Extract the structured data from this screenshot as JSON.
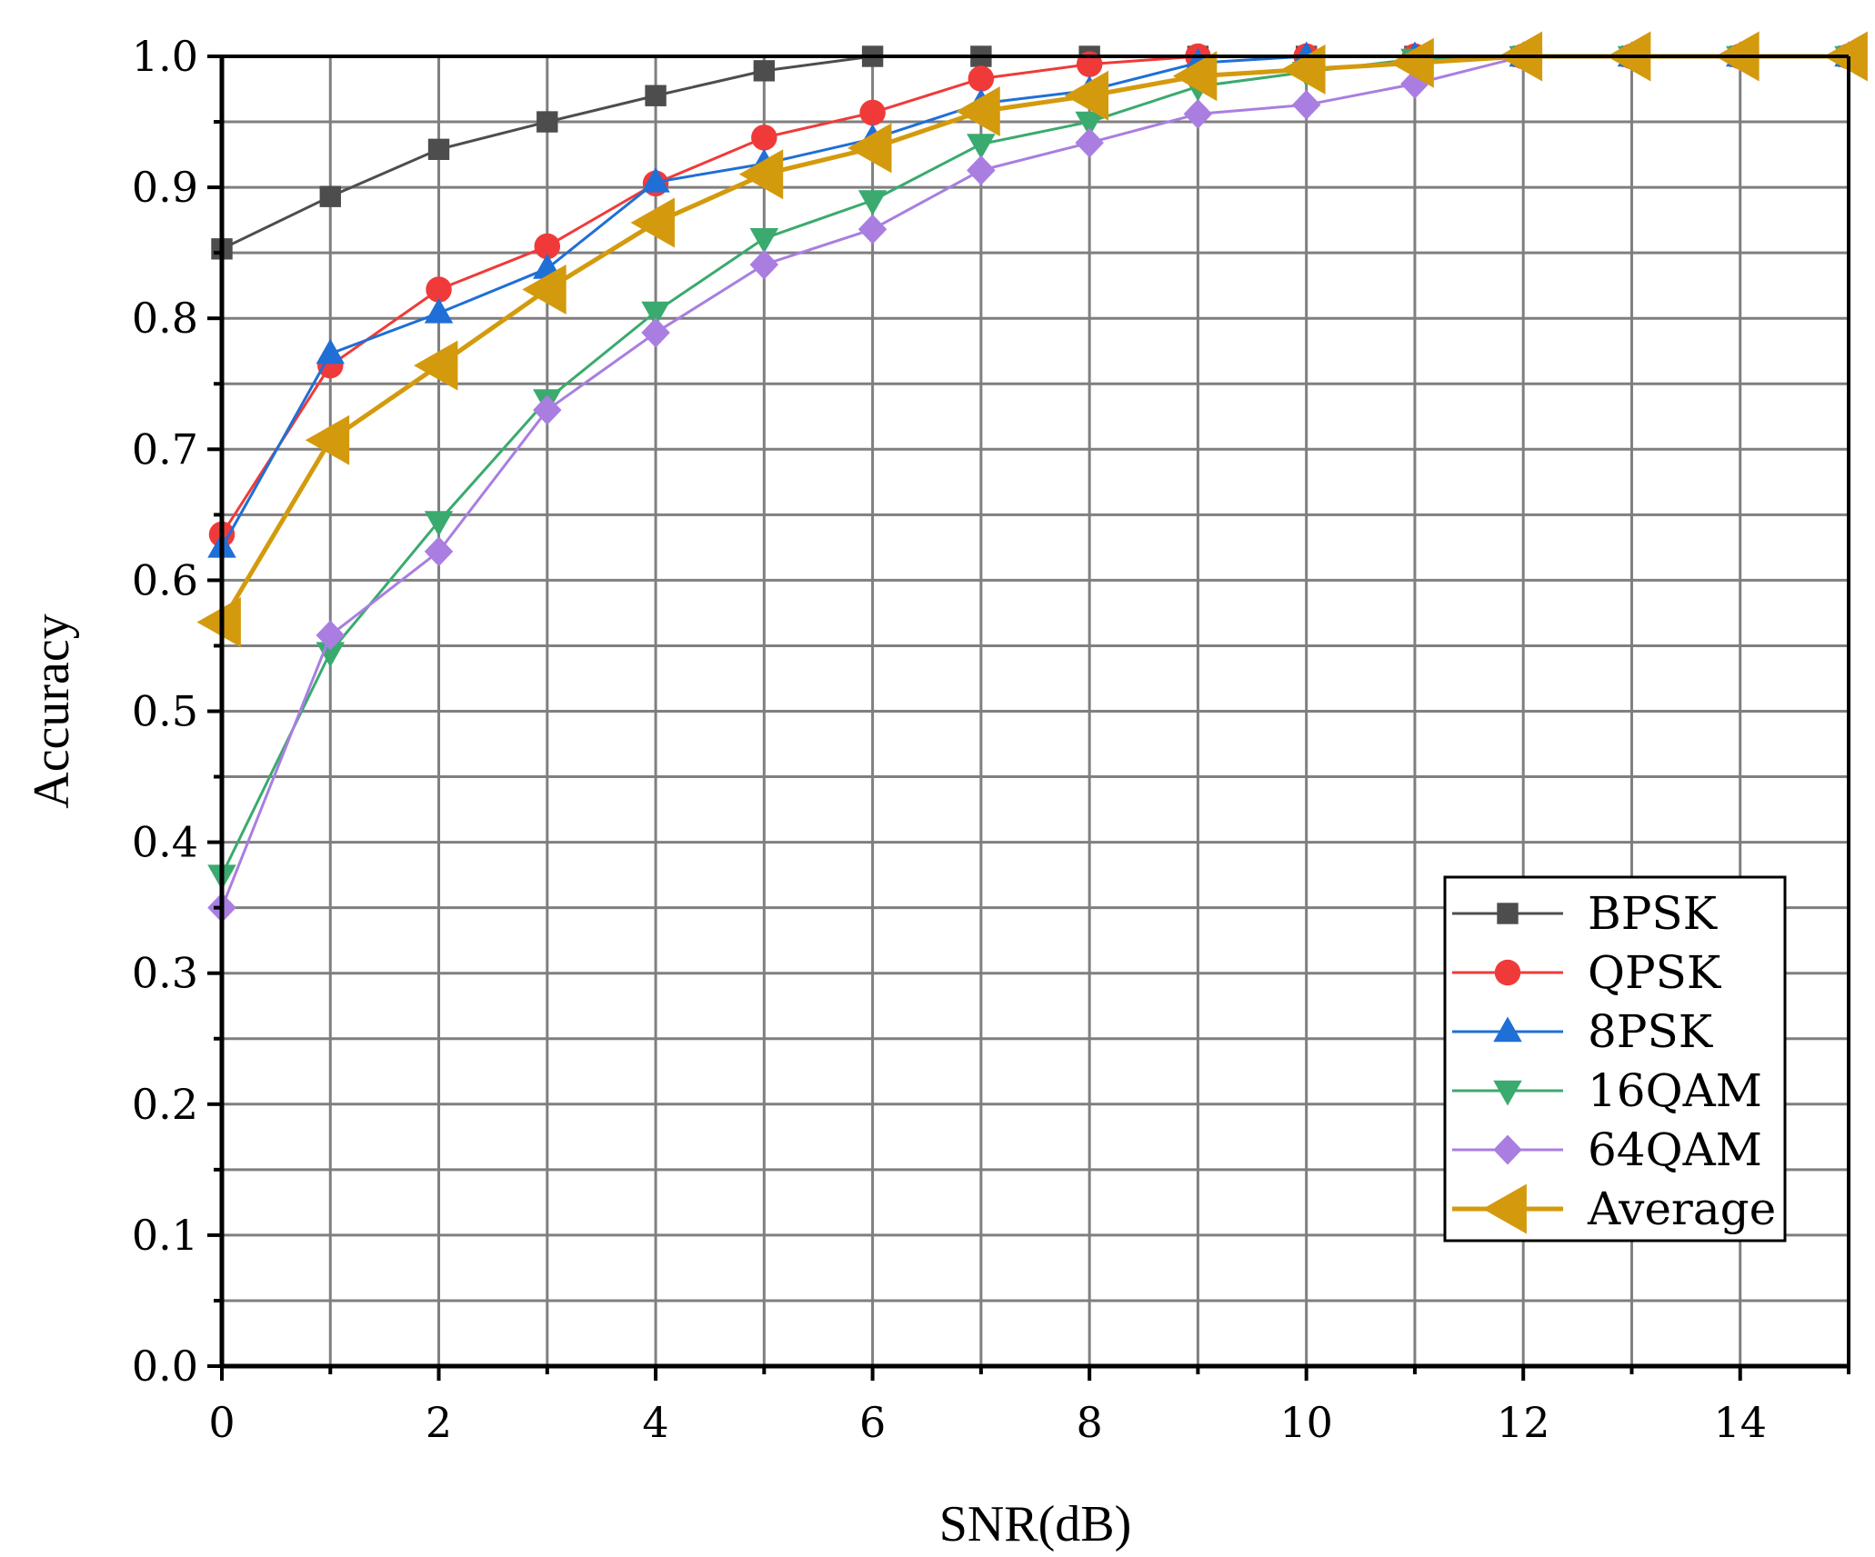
{
  "chart_data": {
    "type": "line",
    "title": "",
    "xlabel": "SNR(dB)",
    "ylabel": "Accuracy",
    "xlim": [
      0,
      15
    ],
    "ylim": [
      0,
      1
    ],
    "grid": true,
    "legend_position": "bottom-right",
    "x_ticks": [
      {
        "value": 0,
        "label": "0"
      },
      {
        "value": 2,
        "label": "2"
      },
      {
        "value": 4,
        "label": "4"
      },
      {
        "value": 6,
        "label": "6"
      },
      {
        "value": 8,
        "label": "8"
      },
      {
        "value": 10,
        "label": "10"
      },
      {
        "value": 12,
        "label": "12"
      },
      {
        "value": 14,
        "label": "14"
      }
    ],
    "y_ticks": [
      {
        "value": 0.0,
        "label": "0.0"
      },
      {
        "value": 0.1,
        "label": "0.1"
      },
      {
        "value": 0.2,
        "label": "0.2"
      },
      {
        "value": 0.3,
        "label": "0.3"
      },
      {
        "value": 0.4,
        "label": "0.4"
      },
      {
        "value": 0.5,
        "label": "0.5"
      },
      {
        "value": 0.6,
        "label": "0.6"
      },
      {
        "value": 0.7,
        "label": "0.7"
      },
      {
        "value": 0.8,
        "label": "0.8"
      },
      {
        "value": 0.9,
        "label": "0.9"
      },
      {
        "value": 1.0,
        "label": "1.0"
      }
    ],
    "x": [
      0,
      1,
      2,
      3,
      4,
      5,
      6,
      7,
      8,
      9,
      10,
      11,
      12,
      13,
      14,
      15
    ],
    "series": [
      {
        "name": "BPSK",
        "color": "#4d4d4d",
        "marker": "square",
        "values": [
          0.853,
          0.893,
          0.929,
          0.95,
          0.97,
          0.989,
          1.0,
          1.0,
          1.0,
          1.0,
          1.0,
          1.0,
          1.0,
          1.0,
          1.0,
          1.0
        ]
      },
      {
        "name": "QPSK",
        "color": "#f03a3a",
        "marker": "circle",
        "values": [
          0.635,
          0.764,
          0.822,
          0.855,
          0.903,
          0.938,
          0.957,
          0.983,
          0.994,
          1.0,
          1.0,
          1.0,
          1.0,
          1.0,
          1.0,
          1.0
        ]
      },
      {
        "name": "8PSK",
        "color": "#1f6fd6",
        "marker": "triangle-up",
        "values": [
          0.625,
          0.773,
          0.804,
          0.838,
          0.904,
          0.918,
          0.937,
          0.964,
          0.974,
          0.995,
          1.0,
          1.0,
          1.0,
          1.0,
          1.0,
          1.0
        ]
      },
      {
        "name": "16QAM",
        "color": "#3aaa6e",
        "marker": "triangle-down",
        "values": [
          0.375,
          0.545,
          0.645,
          0.738,
          0.805,
          0.861,
          0.89,
          0.933,
          0.95,
          0.977,
          0.988,
          0.998,
          1.0,
          1.0,
          1.0,
          1.0
        ]
      },
      {
        "name": "64QAM",
        "color": "#a97ee0",
        "marker": "diamond",
        "values": [
          0.35,
          0.558,
          0.622,
          0.73,
          0.789,
          0.841,
          0.868,
          0.913,
          0.934,
          0.956,
          0.963,
          0.979,
          1.0,
          1.0,
          1.0,
          1.0
        ]
      },
      {
        "name": "Average",
        "color": "#d49a0e",
        "marker": "triangle-left",
        "values": [
          0.568,
          0.707,
          0.764,
          0.822,
          0.873,
          0.91,
          0.93,
          0.958,
          0.97,
          0.985,
          0.99,
          0.995,
          1.0,
          1.0,
          1.0,
          1.0
        ]
      }
    ]
  }
}
